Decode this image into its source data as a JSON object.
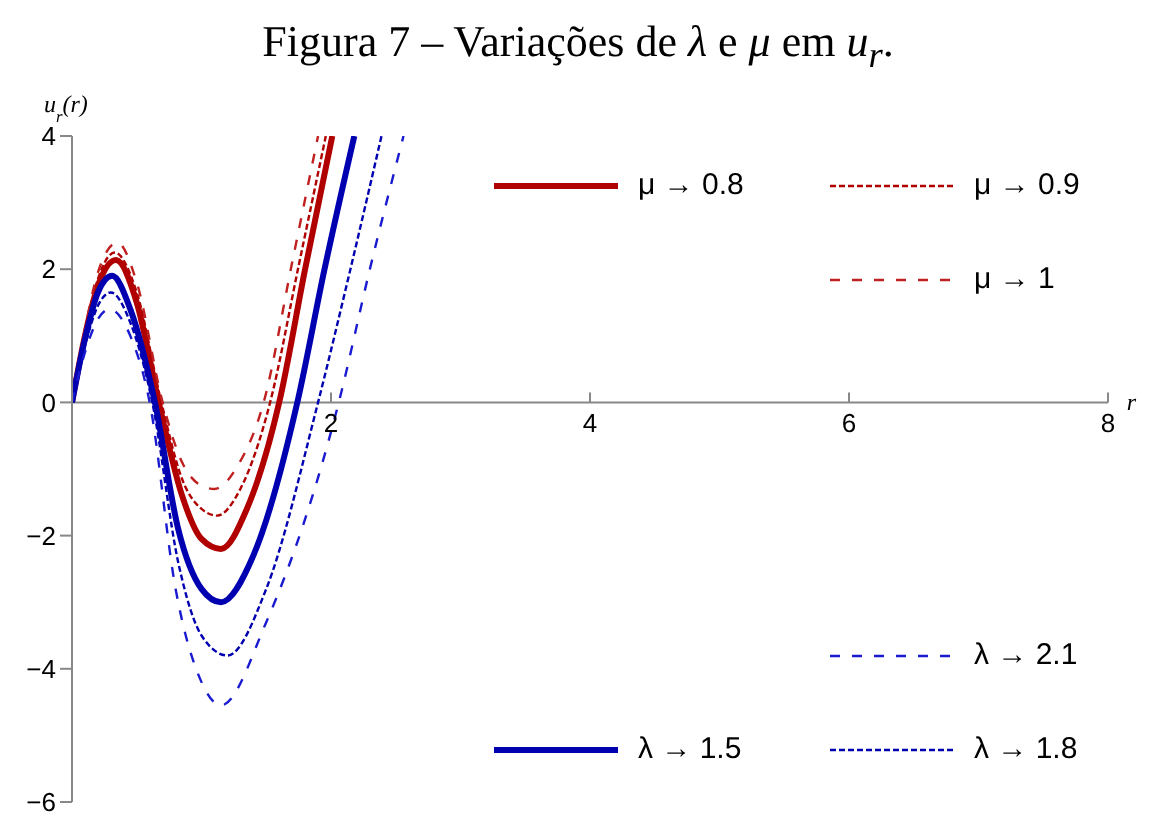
{
  "chart_data": {
    "type": "line",
    "title": "Figura 7 – Variações de λ e μ em u$_{r}$.",
    "ylabel": "u$_{r}$(r)",
    "xlabel": "r",
    "xlim": [
      0,
      8
    ],
    "xticks": [
      2,
      4,
      6,
      8
    ],
    "ylim": [
      -6,
      4
    ],
    "yticks": [
      -6,
      -4,
      -2,
      0,
      2,
      4
    ],
    "legend": "right",
    "marker": "none",
    "series": [
      {
        "name": "μ → 0.8",
        "color": "#b00000",
        "line_style": "solid",
        "x": [
          0,
          0.1,
          0.2,
          0.34,
          0.5,
          0.67,
          0.85,
          1.0,
          1.15,
          1.35,
          1.6,
          1.8,
          2.01
        ],
        "values": [
          0,
          1.0,
          1.75,
          2.14,
          1.5,
          0,
          -1.4,
          -2.05,
          -2.2,
          -1.6,
          0,
          2.0,
          4
        ]
      },
      {
        "name": "μ → 0.9",
        "color": "#b00000",
        "line_style": "dotted",
        "x": [
          0,
          0.1,
          0.2,
          0.33,
          0.5,
          0.69,
          0.85,
          1.0,
          1.12,
          1.3,
          1.53,
          1.75,
          1.96
        ],
        "values": [
          0,
          1.05,
          1.85,
          2.25,
          1.65,
          0,
          -1.15,
          -1.6,
          -1.7,
          -1.3,
          0,
          2.05,
          4
        ]
      },
      {
        "name": "μ → 1",
        "color": "#c02020",
        "line_style": "dashed",
        "x": [
          0,
          0.1,
          0.2,
          0.35,
          0.5,
          0.7,
          0.85,
          1.0,
          1.1,
          1.28,
          1.48,
          1.7,
          1.9
        ],
        "values": [
          0,
          1.1,
          1.95,
          2.4,
          1.8,
          0,
          -0.9,
          -1.25,
          -1.3,
          -0.95,
          0,
          2.1,
          4
        ]
      },
      {
        "name": "λ → 1.5",
        "color": "#0000b0",
        "line_style": "solid",
        "x": [
          0,
          0.1,
          0.2,
          0.31,
          0.45,
          0.64,
          0.82,
          1.0,
          1.15,
          1.4,
          1.74,
          1.95,
          2.18
        ],
        "values": [
          0,
          0.95,
          1.65,
          1.9,
          1.4,
          0,
          -1.9,
          -2.8,
          -3.0,
          -2.3,
          0,
          2.0,
          4
        ]
      },
      {
        "name": "λ → 1.8",
        "color": "#0000b0",
        "line_style": "dotted",
        "x": [
          0,
          0.1,
          0.2,
          0.3,
          0.45,
          0.62,
          0.82,
          1.0,
          1.2,
          1.5,
          1.9,
          2.15,
          2.39
        ],
        "values": [
          0,
          0.85,
          1.45,
          1.65,
          1.2,
          0,
          -2.4,
          -3.5,
          -3.8,
          -2.8,
          0,
          2.0,
          4
        ]
      },
      {
        "name": "λ → 2.1",
        "color": "#1a1ad0",
        "line_style": "dashed",
        "x": [
          0,
          0.1,
          0.2,
          0.29,
          0.45,
          0.6,
          0.8,
          1.0,
          1.15,
          1.5,
          2.06,
          2.3,
          2.56
        ],
        "values": [
          0,
          0.75,
          1.25,
          1.4,
          1.0,
          0,
          -2.8,
          -4.2,
          -4.55,
          -3.3,
          0,
          2.0,
          4
        ]
      }
    ]
  }
}
